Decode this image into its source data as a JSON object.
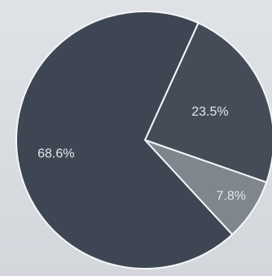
{
  "chart_data": {
    "type": "pie",
    "slices": [
      {
        "label": "23.5%",
        "value": 23.5,
        "color": "#454c58"
      },
      {
        "label": "7.8%",
        "value": 7.8,
        "color": "#7f868e"
      },
      {
        "label": "68.6%",
        "value": 68.6,
        "color": "#3f4653"
      }
    ],
    "start_angle_deg": -65.5,
    "direction": "clockwise",
    "legend": "none",
    "title": ""
  }
}
